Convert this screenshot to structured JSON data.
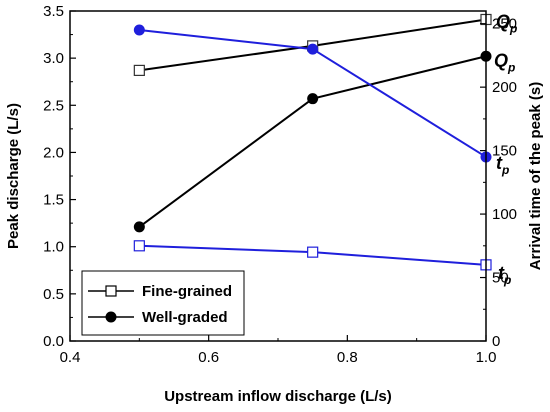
{
  "chart_data": {
    "type": "line",
    "xlabel": "Upstream inflow discharge (L/s)",
    "ylabel_left": "Peak discharge (L/s)",
    "ylabel_right": "Arrival time of the peak (s)",
    "xlim": [
      0.4,
      1.0
    ],
    "xticks": [
      0.4,
      0.6,
      0.8,
      1.0
    ],
    "xtick_labels": [
      "0.4",
      "0.6",
      "0.8",
      "1.0"
    ],
    "ylim_left": [
      0.0,
      3.5
    ],
    "yticks_left": [
      0.0,
      0.5,
      1.0,
      1.5,
      2.0,
      2.5,
      3.0,
      3.5
    ],
    "ytick_labels_left": [
      "0.0",
      "0.5",
      "1.0",
      "1.5",
      "2.0",
      "2.5",
      "3.0",
      "3.5"
    ],
    "ylim_right": [
      0,
      260
    ],
    "yticks_right": [
      0,
      50,
      100,
      150,
      200,
      250
    ],
    "ytick_labels_right": [
      "0",
      "50",
      "100",
      "150",
      "200",
      "250"
    ],
    "grid": false,
    "legend_position": "bottom-left",
    "series": [
      {
        "key": "fine_qp",
        "marker": "open-square",
        "color": "#000000",
        "axis": "left",
        "x": [
          0.5,
          0.75,
          1.0
        ],
        "y": [
          2.87,
          3.13,
          3.41
        ],
        "label": "Q",
        "label_sub": "p"
      },
      {
        "key": "well_qp",
        "marker": "filled-circle",
        "color": "#000000",
        "axis": "left",
        "x": [
          0.5,
          0.75,
          1.0
        ],
        "y": [
          1.21,
          2.57,
          3.02
        ],
        "label": "Q",
        "label_sub": "p"
      },
      {
        "key": "well_tp",
        "marker": "filled-circle",
        "color": "#1f1fdc",
        "axis": "right",
        "x": [
          0.5,
          0.75,
          1.0
        ],
        "y": [
          245,
          230,
          145
        ],
        "label": "t",
        "label_sub": "p"
      },
      {
        "key": "fine_tp",
        "marker": "open-square",
        "color": "#1f1fdc",
        "axis": "right",
        "x": [
          0.5,
          0.75,
          1.0
        ],
        "y": [
          75,
          70,
          60
        ],
        "label": "t",
        "label_sub": "p"
      }
    ],
    "legend": [
      {
        "name": "Fine-grained",
        "marker": "open-square"
      },
      {
        "name": "Well-graded",
        "marker": "filled-circle"
      }
    ]
  }
}
